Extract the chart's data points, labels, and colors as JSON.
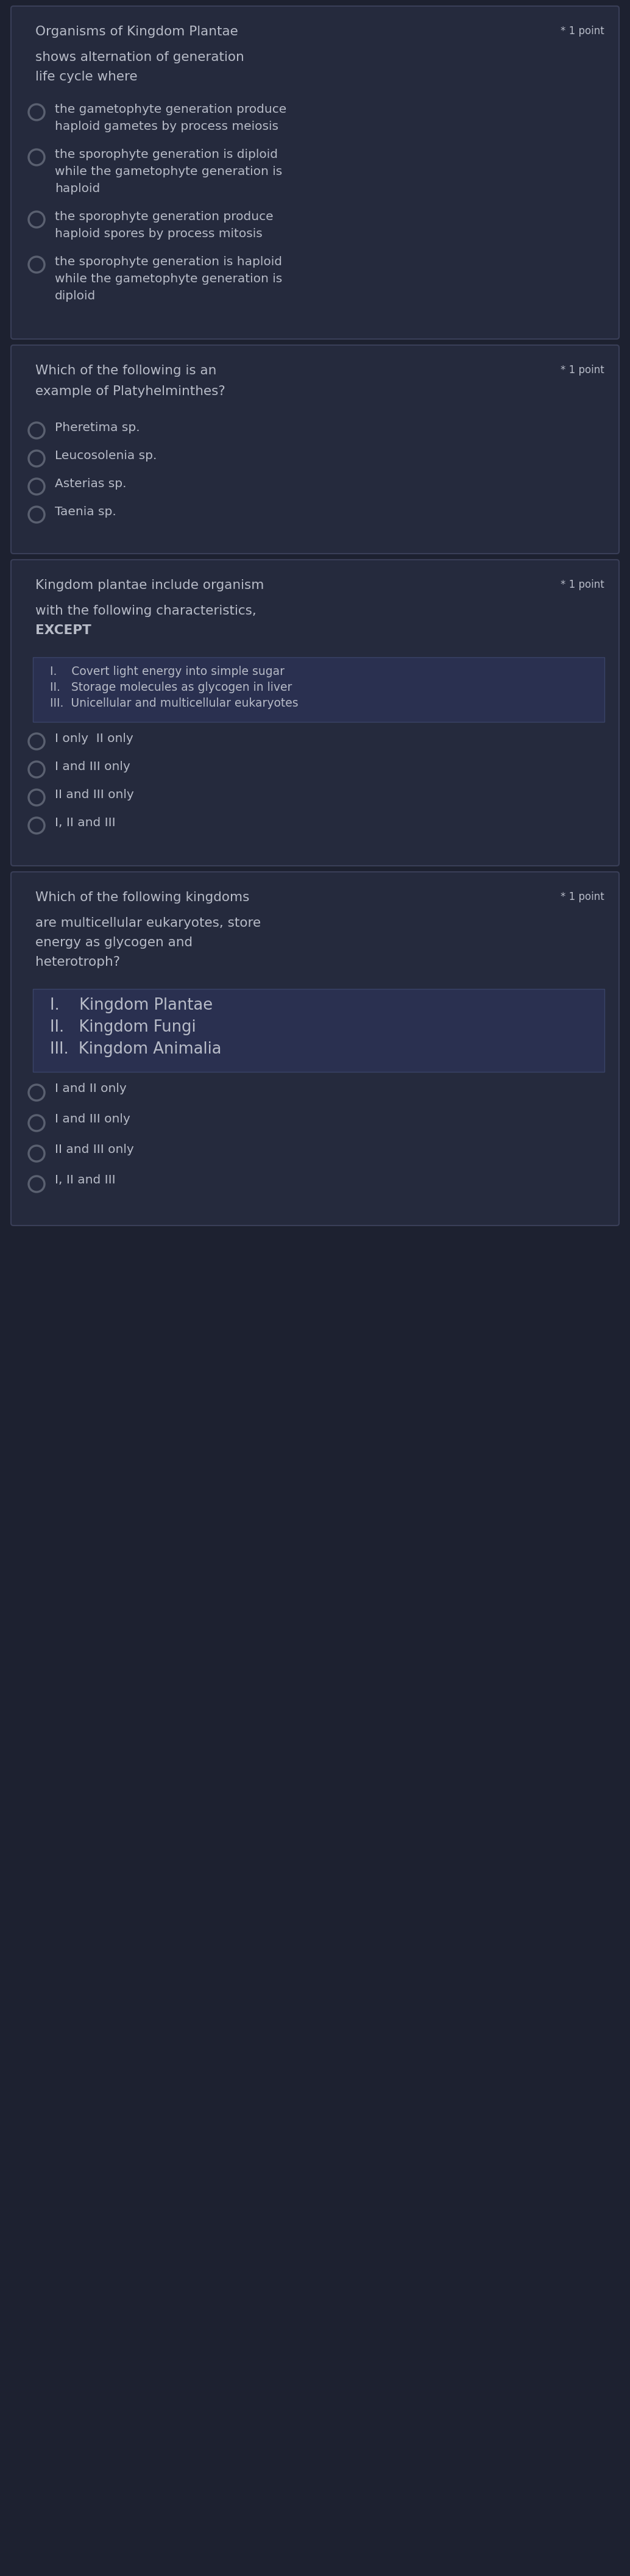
{
  "bg_color": "#1d2130",
  "card_bg": "#252a3d",
  "card_border": "#3a3f58",
  "text_color": "#b8bcc8",
  "title_color": "#b8bcc8",
  "point_color": "#b8bcc8",
  "radio_color": "#5a6070",
  "highlight_bg": "#2a3050",
  "highlight_border": "#3a4468",
  "questions": [
    {
      "title": "Organisms of Kingdom Plantae",
      "point": "* 1 point",
      "subtitle": "shows alternation of generation\nlife cycle where",
      "subtitle_bold_last": false,
      "type": "radio",
      "box_lines": [],
      "box_large_font": false,
      "options": [
        "the gametophyte generation produce\nhaploid gametes by process meiosis",
        "the sporophyte generation is diploid\nwhile the gametophyte generation is\nhaploid",
        "the sporophyte generation produce\nhaploid spores by process mitosis",
        "the sporophyte generation is haploid\nwhile the gametophyte generation is\ndiploid"
      ]
    },
    {
      "title": "Which of the following is an",
      "title2": "example of Platyhelminthes?",
      "point": "* 1 point",
      "subtitle": "",
      "subtitle_bold_last": false,
      "type": "radio",
      "box_lines": [],
      "box_large_font": false,
      "options": [
        "Pheretima sp.",
        "Leucosolenia sp.",
        "Asterias sp.",
        "Taenia sp."
      ]
    },
    {
      "title": "Kingdom plantae include organism",
      "point": "* 1 point",
      "subtitle": "with the following characteristics,\nEXCEPT",
      "subtitle_bold_last": true,
      "type": "radio_with_box",
      "box_lines": [
        "I.    Covert light energy into simple sugar",
        "II.   Storage molecules as glycogen in liver",
        "III.  Unicellular and multicellular eukaryotes"
      ],
      "box_large_font": false,
      "options": [
        "I only  II only",
        "I and III only",
        "II and III only",
        "I, II and III"
      ]
    },
    {
      "title": "Which of the following kingdoms",
      "point": "* 1 point",
      "subtitle": "are multicellular eukaryotes, store\nenergy as glycogen and\nheterotroph?",
      "subtitle_bold_last": false,
      "type": "radio_with_box",
      "box_lines": [
        "I.    Kingdom Plantae",
        "II.   Kingdom Fungi",
        "III.  Kingdom Animalia"
      ],
      "box_large_font": true,
      "options": [
        "I and II only",
        "I and III only",
        "II and III only",
        "I, II and III"
      ]
    }
  ]
}
